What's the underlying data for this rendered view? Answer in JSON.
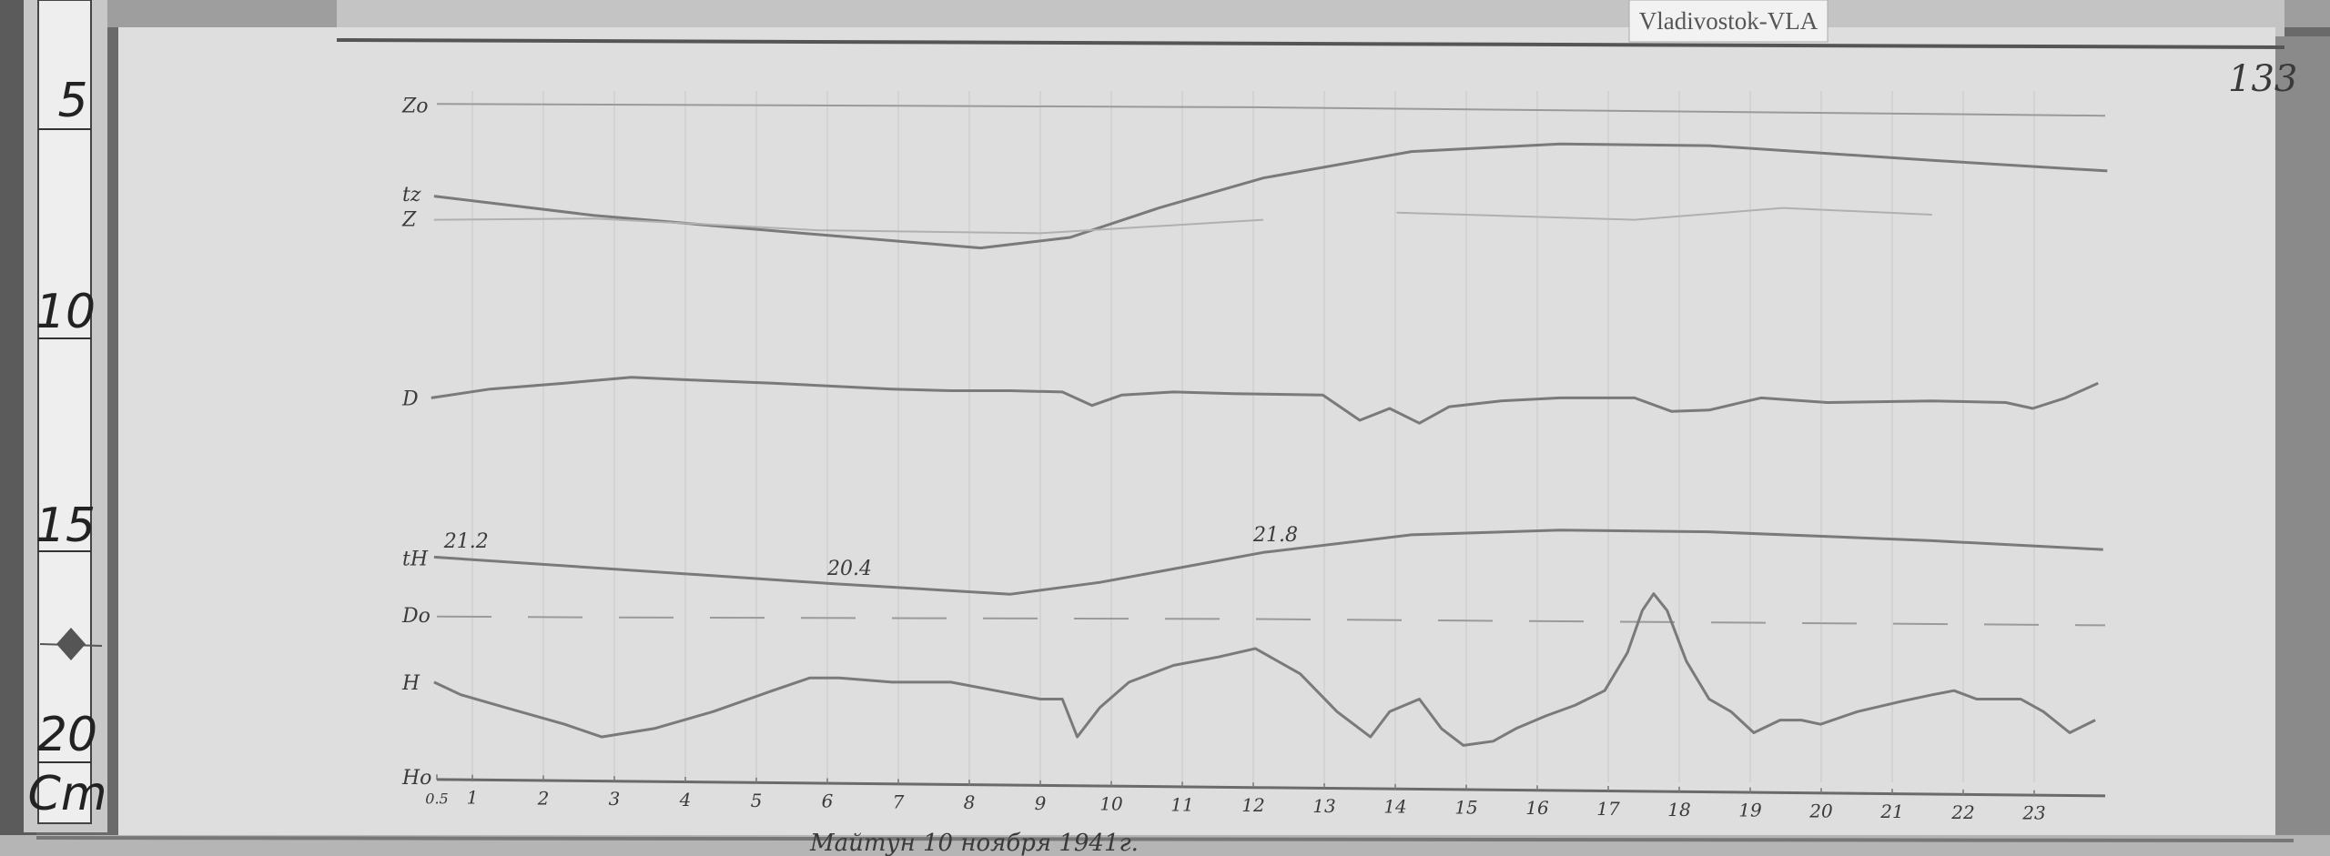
{
  "station_label": "Vladivostok-VLA",
  "sheet_number": "133",
  "footer_note": "Майтун 10 ноября 1941г.",
  "ruler": {
    "unit": "Cm",
    "marks": [
      "5",
      "10",
      "15",
      "20"
    ]
  },
  "colors": {
    "paper": "#dedede",
    "trace": "#7a7a7a",
    "ink": "#333333",
    "frame": "#9a9a9a",
    "wood": "#5b5b5b"
  },
  "chart_data": {
    "type": "line",
    "title": "",
    "xlabel": "",
    "ylabel": "",
    "y_unit_from_ruler": "Cm",
    "xlim": [
      0.5,
      24
    ],
    "ylim_cm": [
      5,
      21.5
    ],
    "grid": "vertical hour lines",
    "x_ticks": [
      "0.5",
      "1",
      "2",
      "3",
      "4",
      "5",
      "6",
      "7",
      "8",
      "9",
      "10",
      "11",
      "12",
      "13",
      "14",
      "15",
      "16",
      "17",
      "18",
      "19",
      "20",
      "21",
      "22",
      "23"
    ],
    "x_tick_values": [
      0.5,
      1,
      2,
      3,
      4,
      5,
      6,
      7,
      8,
      9,
      10,
      11,
      12,
      13,
      14,
      15,
      16,
      17,
      18,
      19,
      20,
      21,
      22,
      23
    ],
    "row_labels": [
      {
        "text": "Zo",
        "cm": 5.1
      },
      {
        "text": "tz",
        "cm": 7.2
      },
      {
        "text": "Z",
        "cm": 7.8
      },
      {
        "text": "D",
        "cm": 12.05
      },
      {
        "text": "tH",
        "cm": 15.85
      },
      {
        "text": "Do",
        "cm": 17.2
      },
      {
        "text": "H",
        "cm": 18.8
      },
      {
        "text": "Ho",
        "cm": 21.05
      }
    ],
    "annotations": [
      {
        "text": "21.2",
        "x": 0.6,
        "cm": 15.6
      },
      {
        "text": "20.4",
        "x": 6.0,
        "cm": 16.25
      },
      {
        "text": "21.8",
        "x": 12.0,
        "cm": 15.45
      }
    ],
    "baselines": [
      {
        "name": "Zo",
        "points": [
          [
            0.5,
            5.07
          ],
          [
            12,
            5.15
          ],
          [
            24,
            5.35
          ]
        ]
      },
      {
        "name": "Do",
        "points": [
          [
            0.5,
            17.24
          ],
          [
            2.5,
            17.26
          ],
          [
            12,
            17.3
          ],
          [
            24,
            17.45
          ]
        ],
        "dashed": true
      },
      {
        "name": "Ho",
        "points": [
          [
            0.5,
            21.11
          ],
          [
            12,
            21.3
          ],
          [
            24,
            21.5
          ]
        ]
      }
    ],
    "series": [
      {
        "name": "tz",
        "points": [
          [
            0.46,
            7.26
          ],
          [
            2.72,
            7.72
          ],
          [
            5.86,
            8.17
          ],
          [
            8.16,
            8.49
          ],
          [
            9.42,
            8.24
          ],
          [
            10.67,
            7.54
          ],
          [
            12.14,
            6.83
          ],
          [
            14.23,
            6.2
          ],
          [
            16.32,
            6.02
          ],
          [
            18.42,
            6.06
          ],
          [
            21.56,
            6.41
          ],
          [
            24.03,
            6.66
          ]
        ]
      },
      {
        "name": "Z",
        "points": [
          [
            0.46,
            7.82
          ],
          [
            2.72,
            7.79
          ],
          [
            5.86,
            8.07
          ],
          [
            9.0,
            8.14
          ],
          [
            12.14,
            7.82
          ]
        ],
        "faint": true
      },
      {
        "name": "Z",
        "points": [
          [
            14.02,
            7.65
          ],
          [
            17.37,
            7.82
          ],
          [
            19.46,
            7.54
          ],
          [
            21.56,
            7.7
          ]
        ],
        "faint": true
      },
      {
        "name": "D",
        "points": [
          [
            0.42,
            12.05
          ],
          [
            1.25,
            11.84
          ],
          [
            2.3,
            11.7
          ],
          [
            3.24,
            11.56
          ],
          [
            4.18,
            11.63
          ],
          [
            5.23,
            11.7
          ],
          [
            6.07,
            11.77
          ],
          [
            6.91,
            11.84
          ],
          [
            7.74,
            11.88
          ],
          [
            8.58,
            11.88
          ],
          [
            9.31,
            11.91
          ],
          [
            9.73,
            12.23
          ],
          [
            10.15,
            11.98
          ],
          [
            10.88,
            11.91
          ],
          [
            11.72,
            11.95
          ],
          [
            12.98,
            11.98
          ],
          [
            13.5,
            12.58
          ],
          [
            13.92,
            12.3
          ],
          [
            14.34,
            12.65
          ],
          [
            14.76,
            12.26
          ],
          [
            15.49,
            12.12
          ],
          [
            16.32,
            12.05
          ],
          [
            17.37,
            12.05
          ],
          [
            17.89,
            12.37
          ],
          [
            18.42,
            12.34
          ],
          [
            19.15,
            12.05
          ],
          [
            20.09,
            12.16
          ],
          [
            21.56,
            12.12
          ],
          [
            22.6,
            12.16
          ],
          [
            22.98,
            12.3
          ],
          [
            23.44,
            12.05
          ],
          [
            23.9,
            11.7
          ]
        ]
      },
      {
        "name": "tH",
        "points": [
          [
            0.46,
            15.83
          ],
          [
            6.07,
            16.46
          ],
          [
            8.58,
            16.71
          ],
          [
            9.84,
            16.43
          ],
          [
            12.14,
            15.72
          ],
          [
            14.23,
            15.3
          ],
          [
            16.32,
            15.19
          ],
          [
            18.42,
            15.23
          ],
          [
            21.56,
            15.44
          ],
          [
            23.97,
            15.65
          ]
        ]
      },
      {
        "name": "H",
        "points": [
          [
            0.46,
            18.8
          ],
          [
            0.84,
            19.1
          ],
          [
            1.46,
            19.4
          ],
          [
            2.3,
            19.8
          ],
          [
            2.82,
            20.1
          ],
          [
            3.56,
            19.9
          ],
          [
            4.39,
            19.5
          ],
          [
            5.23,
            19.0
          ],
          [
            5.75,
            18.7
          ],
          [
            6.17,
            18.7
          ],
          [
            6.91,
            18.8
          ],
          [
            7.74,
            18.8
          ],
          [
            8.37,
            19.0
          ],
          [
            9.0,
            19.2
          ],
          [
            9.31,
            19.2
          ],
          [
            9.52,
            20.1
          ],
          [
            9.84,
            19.4
          ],
          [
            10.25,
            18.8
          ],
          [
            10.88,
            18.4
          ],
          [
            11.51,
            18.2
          ],
          [
            12.03,
            18.0
          ],
          [
            12.24,
            18.2
          ],
          [
            12.66,
            18.6
          ],
          [
            13.18,
            19.5
          ],
          [
            13.65,
            20.1
          ],
          [
            13.92,
            19.5
          ],
          [
            14.34,
            19.2
          ],
          [
            14.65,
            19.9
          ],
          [
            14.96,
            20.3
          ],
          [
            15.38,
            20.2
          ],
          [
            15.7,
            19.9
          ],
          [
            16.12,
            19.6
          ],
          [
            16.53,
            19.35
          ],
          [
            16.95,
            19.0
          ],
          [
            17.27,
            18.1
          ],
          [
            17.48,
            17.1
          ],
          [
            17.64,
            16.7
          ],
          [
            17.83,
            17.1
          ],
          [
            18.1,
            18.3
          ],
          [
            18.42,
            19.2
          ],
          [
            18.73,
            19.5
          ],
          [
            19.05,
            20.0
          ],
          [
            19.42,
            19.7
          ],
          [
            19.72,
            19.7
          ],
          [
            19.99,
            19.8
          ],
          [
            20.51,
            19.5
          ],
          [
            21.14,
            19.25
          ],
          [
            21.56,
            19.1
          ],
          [
            21.87,
            19.0
          ],
          [
            22.19,
            19.2
          ],
          [
            22.81,
            19.2
          ],
          [
            23.13,
            19.5
          ],
          [
            23.5,
            20.0
          ],
          [
            23.86,
            19.7
          ]
        ]
      }
    ]
  }
}
